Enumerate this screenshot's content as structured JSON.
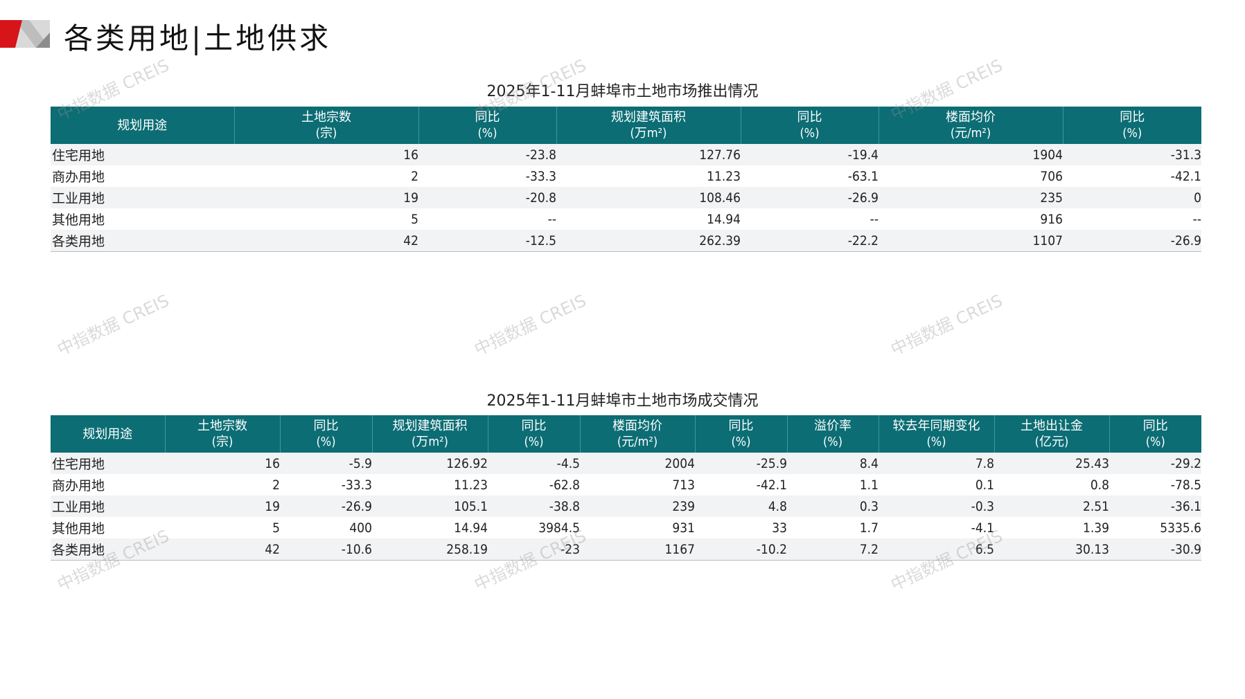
{
  "header": {
    "title": "各类用地|土地供求"
  },
  "watermark": "中指数据 CREIS",
  "colors": {
    "header_bg": "#0c6d74",
    "accent_red": "#d7141a",
    "row_alt": "#f2f3f4"
  },
  "table1": {
    "title": "2025年1-11月蚌埠市土地市场推出情况",
    "columns": [
      {
        "l1": "规划用途",
        "l2": ""
      },
      {
        "l1": "土地宗数",
        "l2": "(宗)"
      },
      {
        "l1": "同比",
        "l2": "(%)"
      },
      {
        "l1": "规划建筑面积",
        "l2": "(万m²)"
      },
      {
        "l1": "同比",
        "l2": "(%)"
      },
      {
        "l1": "楼面均价",
        "l2": "(元/m²)"
      },
      {
        "l1": "同比",
        "l2": "(%)"
      }
    ],
    "rows": [
      [
        "住宅用地",
        "16",
        "-23.8",
        "127.76",
        "-19.4",
        "1904",
        "-31.3"
      ],
      [
        "商办用地",
        "2",
        "-33.3",
        "11.23",
        "-63.1",
        "706",
        "-42.1"
      ],
      [
        "工业用地",
        "19",
        "-20.8",
        "108.46",
        "-26.9",
        "235",
        "0"
      ],
      [
        "其他用地",
        "5",
        "--",
        "14.94",
        "--",
        "916",
        "--"
      ],
      [
        "各类用地",
        "42",
        "-12.5",
        "262.39",
        "-22.2",
        "1107",
        "-26.9"
      ]
    ]
  },
  "table2": {
    "title": "2025年1-11月蚌埠市土地市场成交情况",
    "columns": [
      {
        "l1": "规划用途",
        "l2": ""
      },
      {
        "l1": "土地宗数",
        "l2": "(宗)"
      },
      {
        "l1": "同比",
        "l2": "(%)"
      },
      {
        "l1": "规划建筑面积",
        "l2": "(万m²)"
      },
      {
        "l1": "同比",
        "l2": "(%)"
      },
      {
        "l1": "楼面均价",
        "l2": "(元/m²)"
      },
      {
        "l1": "同比",
        "l2": "(%)"
      },
      {
        "l1": "溢价率",
        "l2": "(%)"
      },
      {
        "l1": "较去年同期变化",
        "l2": "(%)"
      },
      {
        "l1": "土地出让金",
        "l2": "(亿元)"
      },
      {
        "l1": "同比",
        "l2": "(%)"
      }
    ],
    "rows": [
      [
        "住宅用地",
        "16",
        "-5.9",
        "126.92",
        "-4.5",
        "2004",
        "-25.9",
        "8.4",
        "7.8",
        "25.43",
        "-29.2"
      ],
      [
        "商办用地",
        "2",
        "-33.3",
        "11.23",
        "-62.8",
        "713",
        "-42.1",
        "1.1",
        "0.1",
        "0.8",
        "-78.5"
      ],
      [
        "工业用地",
        "19",
        "-26.9",
        "105.1",
        "-38.8",
        "239",
        "4.8",
        "0.3",
        "-0.3",
        "2.51",
        "-36.1"
      ],
      [
        "其他用地",
        "5",
        "400",
        "14.94",
        "3984.5",
        "931",
        "33",
        "1.7",
        "-4.1",
        "1.39",
        "5335.6"
      ],
      [
        "各类用地",
        "42",
        "-10.6",
        "258.19",
        "-23",
        "1167",
        "-10.2",
        "7.2",
        "6.5",
        "30.13",
        "-30.9"
      ]
    ]
  }
}
